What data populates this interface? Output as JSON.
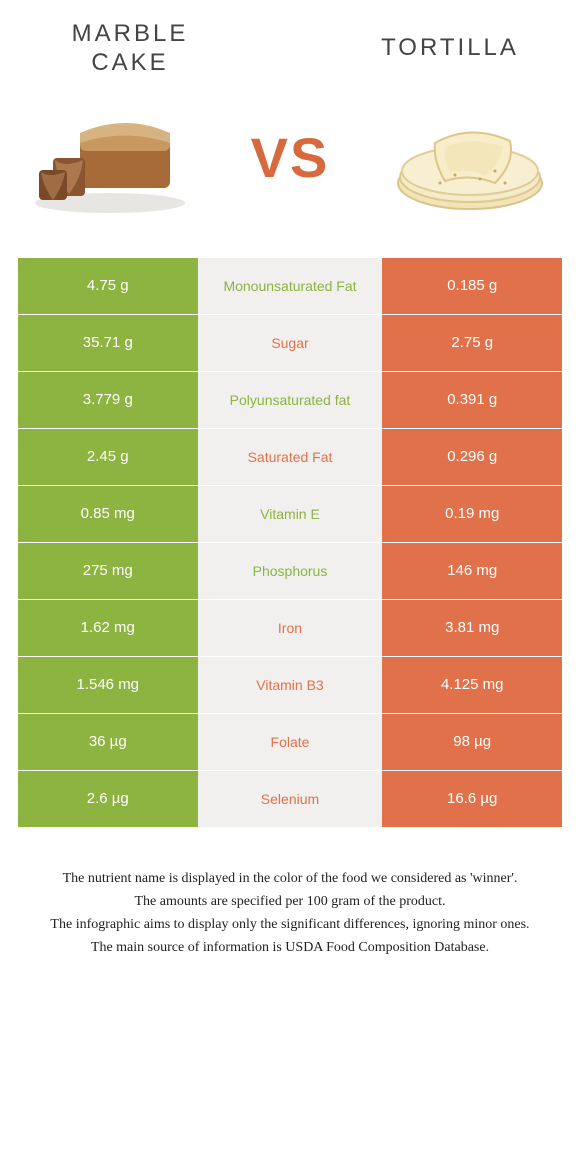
{
  "colors": {
    "left_bg": "#8db340",
    "right_bg": "#e1714a",
    "mid_bg": "#f1f0ee",
    "label_left": "#8db340",
    "label_right": "#e1714a",
    "vs": "#d8693f"
  },
  "header": {
    "left_title_line1": "MARBLE",
    "left_title_line2": "CAKE",
    "right_title": "TORTILLA",
    "vs": "VS"
  },
  "rows": [
    {
      "left": "4.75 g",
      "label": "Monounsaturated Fat",
      "right": "0.185 g",
      "winner": "left"
    },
    {
      "left": "35.71 g",
      "label": "Sugar",
      "right": "2.75 g",
      "winner": "right"
    },
    {
      "left": "3.779 g",
      "label": "Polyunsaturated fat",
      "right": "0.391 g",
      "winner": "left"
    },
    {
      "left": "2.45 g",
      "label": "Saturated Fat",
      "right": "0.296 g",
      "winner": "right"
    },
    {
      "left": "0.85 mg",
      "label": "Vitamin E",
      "right": "0.19 mg",
      "winner": "left"
    },
    {
      "left": "275 mg",
      "label": "Phosphorus",
      "right": "146 mg",
      "winner": "left"
    },
    {
      "left": "1.62 mg",
      "label": "Iron",
      "right": "3.81 mg",
      "winner": "right"
    },
    {
      "left": "1.546 mg",
      "label": "Vitamin B3",
      "right": "4.125 mg",
      "winner": "right"
    },
    {
      "left": "36 µg",
      "label": "Folate",
      "right": "98 µg",
      "winner": "right"
    },
    {
      "left": "2.6 µg",
      "label": "Selenium",
      "right": "16.6 µg",
      "winner": "right"
    }
  ],
  "footer": {
    "line1": "The nutrient name is displayed in the color of the food we considered as 'winner'.",
    "line2": "The amounts are specified per 100 gram of the product.",
    "line3": "The infographic aims to display only the significant differences, ignoring minor ones.",
    "line4": "The main source of information is USDA Food Composition Database."
  }
}
